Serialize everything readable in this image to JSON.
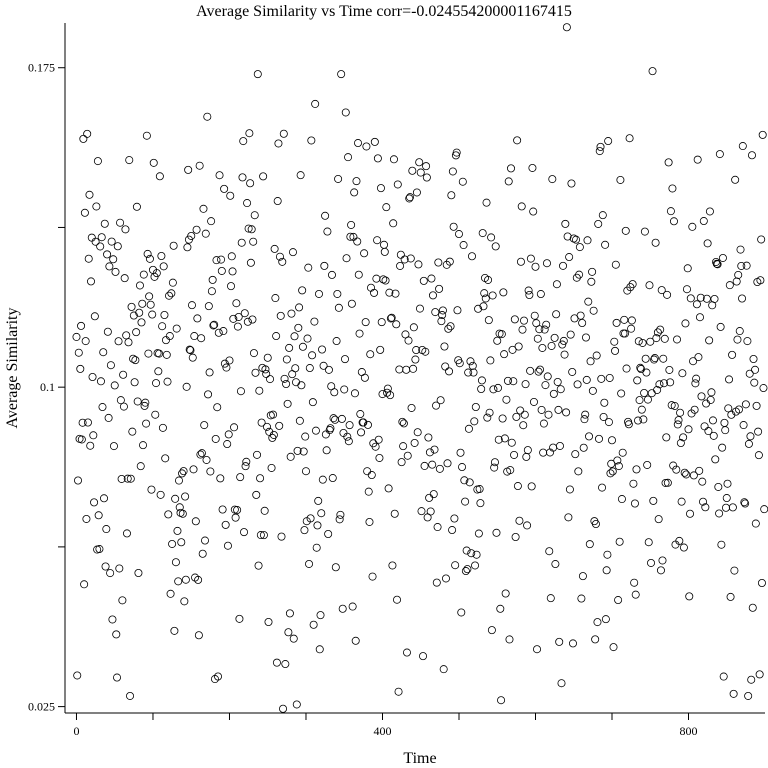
{
  "chart_data": {
    "type": "scatter",
    "title": "Average Similarity vs Time corr=-0.024554200001167415",
    "xlabel": "Time",
    "ylabel": "Average Similarity",
    "xlim": [
      -15,
      900
    ],
    "ylim": [
      0.0235,
      0.1855
    ],
    "x_ticks": [
      {
        "value": 0,
        "label": "0"
      },
      {
        "value": 100,
        "label": ""
      },
      {
        "value": 200,
        "label": ""
      },
      {
        "value": 300,
        "label": ""
      },
      {
        "value": 400,
        "label": "400"
      },
      {
        "value": 500,
        "label": ""
      },
      {
        "value": 600,
        "label": ""
      },
      {
        "value": 700,
        "label": ""
      },
      {
        "value": 800,
        "label": "800"
      }
    ],
    "y_ticks": [
      {
        "value": 0.025,
        "label": "0.025"
      },
      {
        "value": 0.0625,
        "label": ""
      },
      {
        "value": 0.1,
        "label": "0.1"
      },
      {
        "value": 0.1375,
        "label": ""
      },
      {
        "value": 0.175,
        "label": "0.175"
      }
    ],
    "grid": false,
    "marker": "open-circle",
    "n_points": 900,
    "seed": 20240611,
    "point_distribution": {
      "mean": 0.1,
      "sd": 0.03
    },
    "outliers": [
      {
        "x": 641,
        "y": 0.1845
      },
      {
        "x": 237,
        "y": 0.1735
      },
      {
        "x": 346,
        "y": 0.1735
      },
      {
        "x": 753,
        "y": 0.1742
      },
      {
        "x": 312,
        "y": 0.1665
      },
      {
        "x": 352,
        "y": 0.1645
      },
      {
        "x": 271,
        "y": 0.1595
      },
      {
        "x": 171,
        "y": 0.1635
      },
      {
        "x": 270,
        "y": 0.0245
      },
      {
        "x": 288,
        "y": 0.0255
      },
      {
        "x": 555,
        "y": 0.0265
      },
      {
        "x": 70,
        "y": 0.0275
      },
      {
        "x": 421,
        "y": 0.0285
      },
      {
        "x": 634,
        "y": 0.0305
      },
      {
        "x": 859,
        "y": 0.028
      },
      {
        "x": 878,
        "y": 0.0275
      }
    ]
  }
}
